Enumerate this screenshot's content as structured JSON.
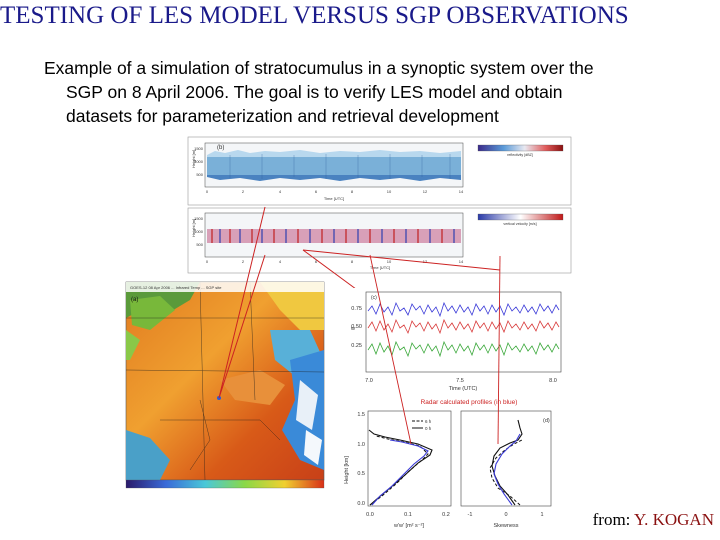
{
  "title": "TESTING OF LES MODEL VERSUS SGP OBSERVATIONS",
  "subtitle_line1": "Example of a simulation of stratocumulus in a synoptic system over the",
  "subtitle_line2": "SGP on 8 April 2006. The goal is to verify LES model and obtain",
  "subtitle_line3": "datasets for parameterization and retrieval development",
  "credit_prefix": "from: ",
  "credit_name": "Y. KOGAN",
  "figures": {
    "panel_b": {
      "label": "(b)",
      "ylabel": "Height [m]",
      "yticks": [
        "1500",
        "1000",
        "500"
      ],
      "xlabel": "Time [UTC]",
      "xticks": [
        "0",
        "2",
        "4",
        "6",
        "8",
        "10",
        "12",
        "14"
      ],
      "colorbar_label": "reflectivity [dBZ]"
    },
    "panel_b2": {
      "ylabel": "Height [m]",
      "yticks": [
        "1500",
        "1000",
        "500"
      ],
      "xlabel": "Time [UTC]",
      "xticks": [
        "0",
        "2",
        "4",
        "6",
        "8",
        "10",
        "12",
        "14"
      ],
      "colorbar_label": "vertical velocity [m/s]"
    },
    "panel_a": {
      "label": "(a)",
      "header": "GOES-12 08 Apr 2006 ... Infrared Temp ... SGP site"
    },
    "panel_c": {
      "label": "(c)",
      "ylabel": "w",
      "yticks": [
        "0.75",
        "0.50",
        "0.25"
      ],
      "xlabel": "Time (UTC)",
      "xticks": [
        "7.0",
        "7.5",
        "8.0"
      ]
    },
    "panel_d": {
      "label": "(d)",
      "banner": "Radar calculated profiles (in blue)",
      "ylabel": "Height [km]",
      "yticks": [
        "1.5",
        "1.0",
        "0.5",
        "0.0"
      ],
      "left_xticks": [
        "0.0",
        "0.1",
        "0.2"
      ],
      "left_xlabel": "w'w' [m² s⁻²]",
      "right_xticks": [
        "-1",
        "0",
        "1"
      ],
      "right_xlabel": "Skewness",
      "legend": [
        "6 h",
        "0 h"
      ]
    }
  },
  "colors": {
    "title": "#1a1a8a",
    "banner": "#cc2222",
    "credit_name": "#8a1010"
  }
}
